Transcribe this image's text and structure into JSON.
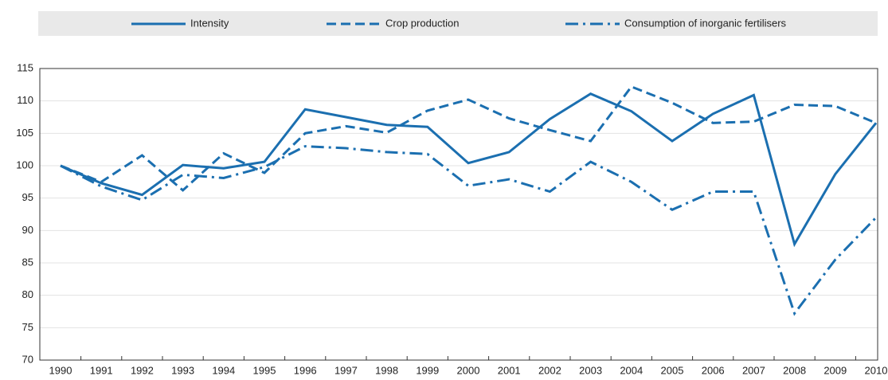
{
  "chart_data": {
    "type": "line",
    "categories": [
      "1990",
      "1991",
      "1992",
      "1993",
      "1994",
      "1995",
      "1996",
      "1997",
      "1998",
      "1999",
      "2000",
      "2001",
      "2002",
      "2003",
      "2004",
      "2005",
      "2006",
      "2007",
      "2008",
      "2009",
      "2010"
    ],
    "series": [
      {
        "name": "Intensity",
        "color": "#1b6fb0",
        "dash": "solid",
        "values": [
          100,
          97.3,
          95.5,
          100.1,
          99.6,
          100.6,
          108.7,
          107.5,
          106.3,
          106.0,
          100.4,
          102.1,
          107.2,
          111.1,
          108.4,
          103.8,
          108.0,
          110.9,
          87.9,
          98.7,
          106.6
        ]
      },
      {
        "name": "Crop production",
        "color": "#1b6fb0",
        "dash": "dashed",
        "values": [
          100,
          97.5,
          101.6,
          96.2,
          101.9,
          98.9,
          105.0,
          106.1,
          105.1,
          108.5,
          110.2,
          107.3,
          105.5,
          103.8,
          112.2,
          109.7,
          106.6,
          106.8,
          109.4,
          109.2,
          106.6
        ]
      },
      {
        "name": "Consumption of inorganic fertilisers",
        "color": "#1b6fb0",
        "dash": "dashdot",
        "values": [
          100,
          96.8,
          94.7,
          98.6,
          98.1,
          99.8,
          103.0,
          102.7,
          102.1,
          101.8,
          96.9,
          97.9,
          96.0,
          100.6,
          97.5,
          93.2,
          96.0,
          96.0,
          77.2,
          85.5,
          92.0
        ]
      }
    ],
    "ylim": [
      70,
      115
    ],
    "yticks": [
      70,
      75,
      80,
      85,
      90,
      95,
      100,
      105,
      110,
      115
    ],
    "grid": true,
    "legend": "top"
  }
}
